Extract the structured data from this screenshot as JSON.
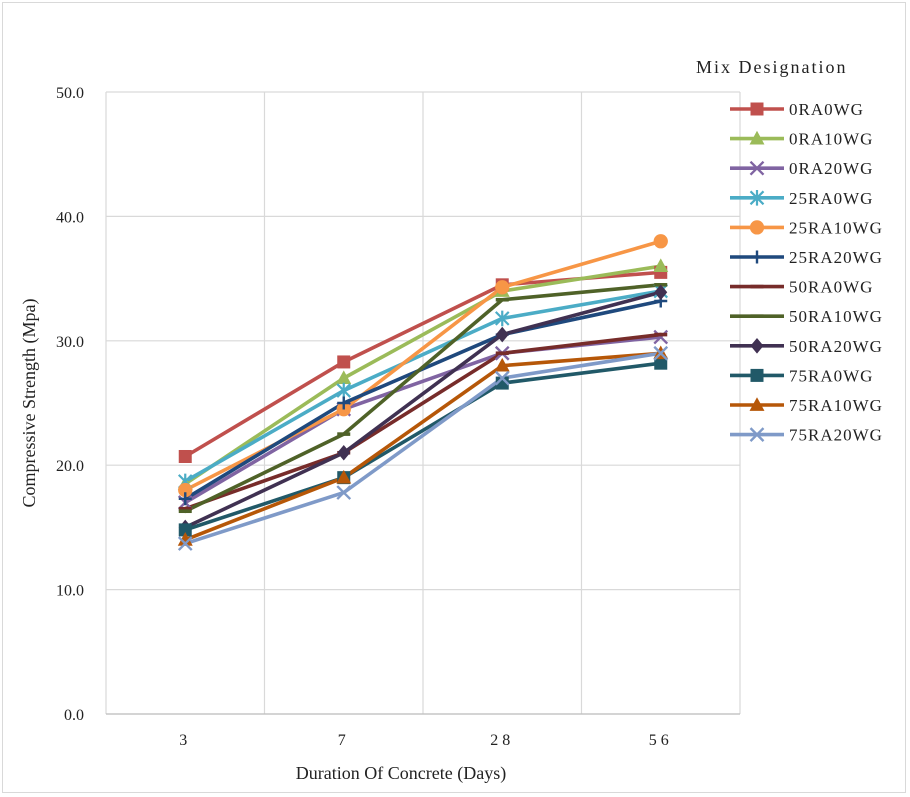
{
  "chart_data": {
    "type": "line",
    "title": "",
    "xlabel": "Duration Of Concrete (Days)",
    "ylabel": "Compressive Strength (Mpa)",
    "categories": [
      "3",
      "7",
      "28",
      "56"
    ],
    "ylim": [
      0,
      50
    ],
    "yticks": [
      "0.0",
      "10.0",
      "20.0",
      "30.0",
      "40.0",
      "50.0"
    ],
    "grid": true,
    "legend_title": "Mix Designation",
    "legend_position": "right",
    "series": [
      {
        "name": "0RA0WG",
        "color": "#c0504d",
        "marker": "square",
        "values": [
          20.7,
          28.3,
          34.5,
          35.5
        ]
      },
      {
        "name": "0RA10WG",
        "color": "#9bbb59",
        "marker": "triangle",
        "values": [
          18.5,
          27.0,
          34.0,
          36.0
        ]
      },
      {
        "name": "0RA20WG",
        "color": "#8064a2",
        "marker": "x",
        "values": [
          17.0,
          24.5,
          29.0,
          30.3
        ]
      },
      {
        "name": "25RA0WG",
        "color": "#4bacc6",
        "marker": "asterisk",
        "values": [
          18.7,
          26.0,
          31.8,
          34.0
        ]
      },
      {
        "name": "25RA10WG",
        "color": "#f79646",
        "marker": "circle",
        "values": [
          18.0,
          24.5,
          34.3,
          38.0
        ]
      },
      {
        "name": "25RA20WG",
        "color": "#1f497d",
        "marker": "plus",
        "values": [
          17.3,
          25.0,
          30.5,
          33.2
        ]
      },
      {
        "name": "50RA0WG",
        "color": "#772c2a",
        "marker": "dash",
        "values": [
          16.5,
          21.0,
          29.0,
          30.5
        ]
      },
      {
        "name": "50RA10WG",
        "color": "#4f6228",
        "marker": "dash",
        "values": [
          16.3,
          22.5,
          33.3,
          34.5
        ]
      },
      {
        "name": "50RA20WG",
        "color": "#403152",
        "marker": "diamond",
        "values": [
          15.0,
          21.0,
          30.5,
          33.9
        ]
      },
      {
        "name": "75RA0WG",
        "color": "#215968",
        "marker": "square",
        "values": [
          14.8,
          19.0,
          26.6,
          28.2
        ]
      },
      {
        "name": "75RA10WG",
        "color": "#b65708",
        "marker": "triangle",
        "values": [
          14.0,
          19.0,
          28.0,
          29.0
        ]
      },
      {
        "name": "75RA20WG",
        "color": "#7f9ac8",
        "marker": "x",
        "values": [
          13.7,
          17.8,
          27.0,
          29.0
        ]
      }
    ]
  }
}
